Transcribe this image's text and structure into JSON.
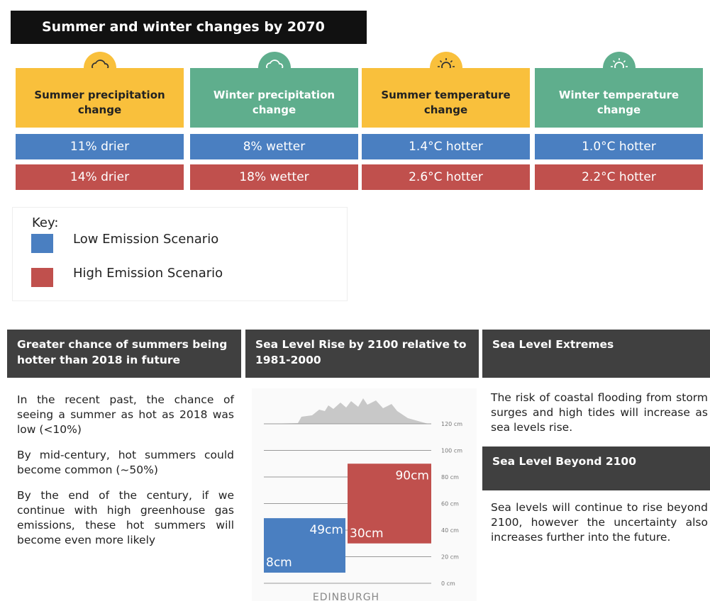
{
  "header": {
    "title": "Summer and winter changes by 2070"
  },
  "cards": [
    {
      "title": "Summer precipitation change",
      "color": "#f9c03c",
      "icon": "cloud",
      "low": "11% drier",
      "high": "14% drier"
    },
    {
      "title": "Winter precipitation change",
      "color": "#5fae8d",
      "icon": "cloud",
      "low": "8% wetter",
      "high": "18% wetter"
    },
    {
      "title": "Summer temperature change",
      "color": "#f9c03c",
      "icon": "sun",
      "low": "1.4°C hotter",
      "high": "2.6°C hotter"
    },
    {
      "title": "Winter temperature change",
      "color": "#5fae8d",
      "icon": "sun",
      "low": "1.0°C hotter",
      "high": "2.2°C hotter"
    }
  ],
  "key": {
    "title": "Key:",
    "items": [
      {
        "label": "Low Emission Scenario",
        "color": "#4a7fc1"
      },
      {
        "label": "High Emission Scenario",
        "color": "#c0504d"
      }
    ]
  },
  "sections": [
    {
      "title": "Greater chance of summers being hotter than 2018 in future",
      "paragraphs": [
        "In the recent past, the chance of seeing a summer as hot as 2018 was low (<10%)",
        "By mid-century, hot summers could become common (~50%)",
        "By the end of the century, if we continue with high greenhouse gas emissions, these hot summers will become even more likely"
      ]
    },
    {
      "title": "Sea Level Rise by 2100 relative to 1981-2000"
    },
    {
      "title": "Sea Level Extremes",
      "paragraphs": [
        "The risk of coastal flooding from storm surges and high tides will increase as sea levels rise."
      ]
    },
    {
      "title": "Sea Level Beyond 2100",
      "paragraphs": [
        "Sea levels will continue to rise beyond 2100, however the uncertainty also increases further into the future."
      ]
    }
  ],
  "sea_level_chart": {
    "type": "bar",
    "city": "EDINBURGH",
    "ylim": [
      0,
      120
    ],
    "yticks": [
      {
        "value": 0,
        "label": "0 cm"
      },
      {
        "value": 20,
        "label": "20 cm"
      },
      {
        "value": 40,
        "label": "40 cm"
      },
      {
        "value": 60,
        "label": "60 cm"
      },
      {
        "value": 80,
        "label": "80 cm"
      },
      {
        "value": 100,
        "label": "100 cm"
      },
      {
        "value": 120,
        "label": "120 cm"
      }
    ],
    "bars": [
      {
        "color": "#4a7fc1",
        "low": 8,
        "high": 49,
        "low_label": "8cm",
        "high_label": "49cm"
      },
      {
        "color": "#c0504d",
        "low": 30,
        "high": 90,
        "low_label": "30cm",
        "high_label": "90cm"
      }
    ]
  }
}
